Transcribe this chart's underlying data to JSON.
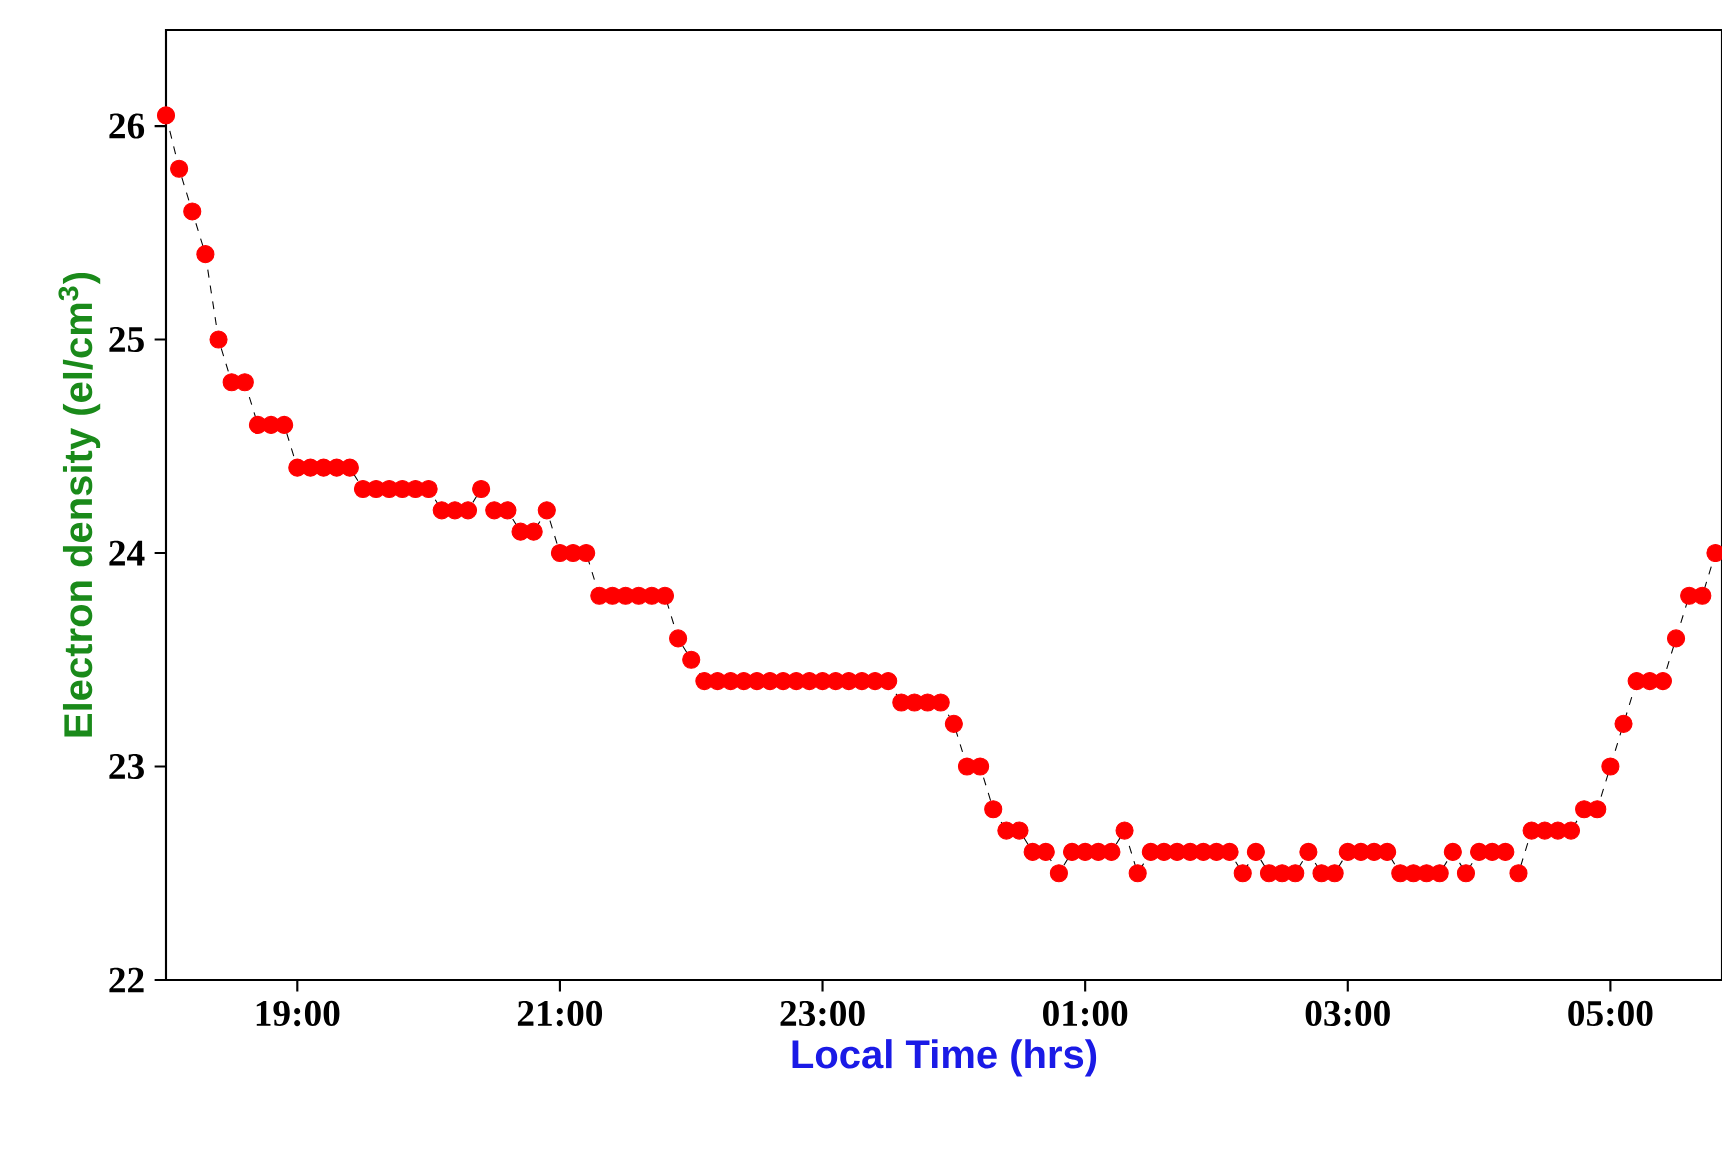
{
  "chart_data": {
    "type": "line",
    "xlabel": "Local Time (hrs)",
    "ylabel": "Electron density (el/cm$^{3}$)",
    "x": [
      "2000-01-01T18:00",
      "2000-01-01T18:06",
      "2000-01-01T18:12",
      "2000-01-01T18:18",
      "2000-01-01T18:24",
      "2000-01-01T18:30",
      "2000-01-01T18:36",
      "2000-01-01T18:42",
      "2000-01-01T18:48",
      "2000-01-01T18:54",
      "2000-01-01T19:00",
      "2000-01-01T19:06",
      "2000-01-01T19:12",
      "2000-01-01T19:18",
      "2000-01-01T19:24",
      "2000-01-01T19:30",
      "2000-01-01T19:36",
      "2000-01-01T19:42",
      "2000-01-01T19:48",
      "2000-01-01T19:54",
      "2000-01-01T20:00",
      "2000-01-01T20:06",
      "2000-01-01T20:12",
      "2000-01-01T20:18",
      "2000-01-01T20:24",
      "2000-01-01T20:30",
      "2000-01-01T20:36",
      "2000-01-01T20:42",
      "2000-01-01T20:48",
      "2000-01-01T20:54",
      "2000-01-01T21:00",
      "2000-01-01T21:06",
      "2000-01-01T21:12",
      "2000-01-01T21:18",
      "2000-01-01T21:24",
      "2000-01-01T21:30",
      "2000-01-01T21:36",
      "2000-01-01T21:42",
      "2000-01-01T21:48",
      "2000-01-01T21:54",
      "2000-01-01T22:00",
      "2000-01-01T22:06",
      "2000-01-01T22:12",
      "2000-01-01T22:18",
      "2000-01-01T22:24",
      "2000-01-01T22:30",
      "2000-01-01T22:36",
      "2000-01-01T22:42",
      "2000-01-01T22:48",
      "2000-01-01T22:54",
      "2000-01-01T23:00",
      "2000-01-01T23:06",
      "2000-01-01T23:12",
      "2000-01-01T23:18",
      "2000-01-01T23:24",
      "2000-01-01T23:30",
      "2000-01-01T23:36",
      "2000-01-01T23:42",
      "2000-01-01T23:48",
      "2000-01-01T23:54",
      "2000-01-02T00:00",
      "2000-01-02T00:06",
      "2000-01-02T00:12",
      "2000-01-02T00:18",
      "2000-01-02T00:24",
      "2000-01-02T00:30",
      "2000-01-02T00:36",
      "2000-01-02T00:42",
      "2000-01-02T00:48",
      "2000-01-02T00:54",
      "2000-01-02T01:00",
      "2000-01-02T01:06",
      "2000-01-02T01:12",
      "2000-01-02T01:18",
      "2000-01-02T01:24",
      "2000-01-02T01:30",
      "2000-01-02T01:36",
      "2000-01-02T01:42",
      "2000-01-02T01:48",
      "2000-01-02T01:54",
      "2000-01-02T02:00",
      "2000-01-02T02:06",
      "2000-01-02T02:12",
      "2000-01-02T02:18",
      "2000-01-02T02:24",
      "2000-01-02T02:30",
      "2000-01-02T02:36",
      "2000-01-02T02:42",
      "2000-01-02T02:48",
      "2000-01-02T02:54",
      "2000-01-02T03:00",
      "2000-01-02T03:06",
      "2000-01-02T03:12",
      "2000-01-02T03:18",
      "2000-01-02T03:24",
      "2000-01-02T03:30",
      "2000-01-02T03:36",
      "2000-01-02T03:42",
      "2000-01-02T03:48",
      "2000-01-02T03:54",
      "2000-01-02T04:00",
      "2000-01-02T04:06",
      "2000-01-02T04:12",
      "2000-01-02T04:18",
      "2000-01-02T04:24",
      "2000-01-02T04:30",
      "2000-01-02T04:36",
      "2000-01-02T04:42",
      "2000-01-02T04:48",
      "2000-01-02T04:54",
      "2000-01-02T05:00",
      "2000-01-02T05:06",
      "2000-01-02T05:12",
      "2000-01-02T05:18",
      "2000-01-02T05:24",
      "2000-01-02T05:30",
      "2000-01-02T05:36",
      "2000-01-02T05:42",
      "2000-01-02T05:48"
    ],
    "series": [
      {
        "color": "#ff0000",
        "values": [
          26.05,
          25.8,
          25.6,
          25.4,
          25.0,
          24.8,
          24.8,
          24.6,
          24.6,
          24.6,
          24.4,
          24.4,
          24.4,
          24.4,
          24.4,
          24.3,
          24.3,
          24.3,
          24.3,
          24.3,
          24.3,
          24.2,
          24.2,
          24.2,
          24.3,
          24.2,
          24.2,
          24.1,
          24.1,
          24.2,
          24.0,
          24.0,
          24.0,
          23.8,
          23.8,
          23.8,
          23.8,
          23.8,
          23.8,
          23.6,
          23.5,
          23.4,
          23.4,
          23.4,
          23.4,
          23.4,
          23.4,
          23.4,
          23.4,
          23.4,
          23.4,
          23.4,
          23.4,
          23.4,
          23.4,
          23.4,
          23.3,
          23.3,
          23.3,
          23.3,
          23.2,
          23.0,
          23.0,
          22.8,
          22.7,
          22.7,
          22.6,
          22.6,
          22.5,
          22.6,
          22.6,
          22.6,
          22.6,
          22.7,
          22.5,
          22.6,
          22.6,
          22.6,
          22.6,
          22.6,
          22.6,
          22.6,
          22.5,
          22.6,
          22.5,
          22.5,
          22.5,
          22.6,
          22.5,
          22.5,
          22.6,
          22.6,
          22.6,
          22.6,
          22.5,
          22.5,
          22.5,
          22.5,
          22.6,
          22.5,
          22.6,
          22.6,
          22.6,
          22.5,
          22.7,
          22.7,
          22.7,
          22.7,
          22.8,
          22.8,
          23.0,
          23.2,
          23.4,
          23.4,
          23.4,
          23.6,
          23.8,
          23.8,
          24.0
        ]
      }
    ],
    "xlim": [
      "2000-01-01T18:00",
      "2000-01-02T05:51"
    ],
    "ylim": [
      22,
      26.45
    ],
    "xticks": [
      {
        "value": "2000-01-01T19:00",
        "label": "19:00"
      },
      {
        "value": "2000-01-01T21:00",
        "label": "21:00"
      },
      {
        "value": "2000-01-01T23:00",
        "label": "23:00"
      },
      {
        "value": "2000-01-02T01:00",
        "label": "01:00"
      },
      {
        "value": "2000-01-02T03:00",
        "label": "03:00"
      },
      {
        "value": "2000-01-02T05:00",
        "label": "05:00"
      }
    ],
    "yticks": [
      22,
      23,
      24,
      25,
      26
    ],
    "marker": "circle",
    "line_style": "dashed"
  }
}
